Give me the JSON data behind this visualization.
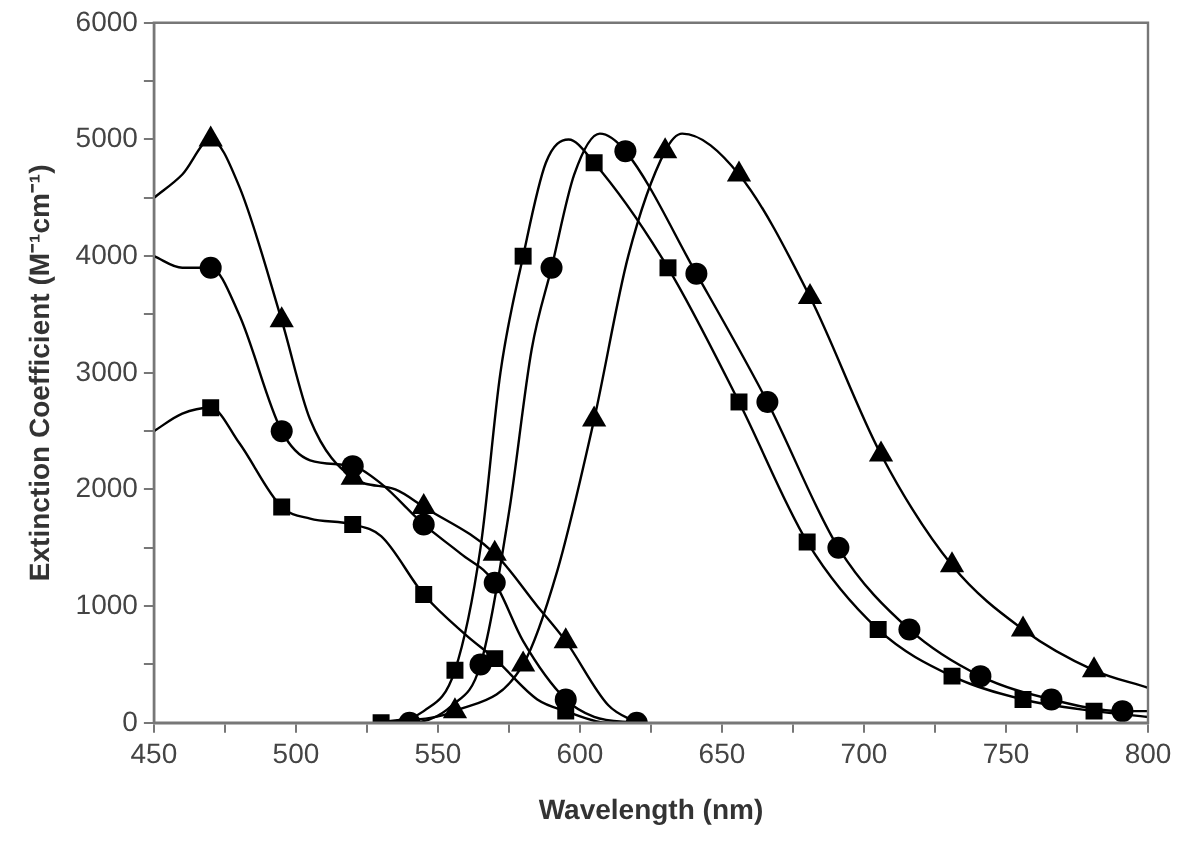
{
  "chart_data": {
    "type": "line",
    "xlabel": "Wavelength (nm)",
    "ylabel": "Extinction Coefficient (M⁻¹cm⁻¹)",
    "xlim": [
      450,
      800
    ],
    "ylim": [
      0,
      6000
    ],
    "xticks": [
      450,
      {
        "value": 475,
        "label": null
      },
      500,
      {
        "value": 525,
        "label": null
      },
      550,
      {
        "value": 575,
        "label": null
      },
      600,
      {
        "value": 625,
        "label": null
      },
      650,
      {
        "value": 675,
        "label": null
      },
      700,
      {
        "value": 725,
        "label": null
      },
      750,
      {
        "value": 775,
        "label": null
      },
      800
    ],
    "yticks": [
      0,
      {
        "value": 500,
        "label": null
      },
      1000,
      {
        "value": 1500,
        "label": null
      },
      2000,
      {
        "value": 2500,
        "label": null
      },
      3000,
      {
        "value": 3500,
        "label": null
      },
      4000,
      {
        "value": 4500,
        "label": null
      },
      5000,
      {
        "value": 5500,
        "label": null
      },
      6000
    ],
    "grid": false,
    "legend": false,
    "series": [
      {
        "marker": "none",
        "color": "#000000",
        "x": [
          450,
          460,
          470,
          480,
          495,
          505,
          520,
          535,
          545,
          570,
          585,
          595,
          610,
          620
        ],
        "values": [
          4500,
          4700,
          5000,
          4600,
          3450,
          2600,
          2100,
          2000,
          1850,
          1450,
          1000,
          700,
          150,
          0
        ]
      },
      {
        "type": "scatter",
        "marker": "triangle",
        "color": "#000000",
        "x": [
          470,
          495,
          520,
          545,
          570,
          595
        ],
        "values": [
          5000,
          3450,
          2100,
          1850,
          1450,
          700
        ]
      },
      {
        "marker": "none",
        "color": "#000000",
        "x": [
          450,
          460,
          470,
          480,
          495,
          505,
          520,
          530,
          545,
          558,
          570,
          580,
          595,
          605,
          620
        ],
        "values": [
          4000,
          3900,
          3900,
          3500,
          2500,
          2250,
          2200,
          2050,
          1700,
          1450,
          1200,
          700,
          200,
          50,
          0
        ]
      },
      {
        "type": "scatter",
        "marker": "circle",
        "color": "#000000",
        "x": [
          470,
          495,
          520,
          545,
          570,
          595,
          620
        ],
        "values": [
          3900,
          2500,
          2200,
          1700,
          1200,
          200,
          0
        ]
      },
      {
        "marker": "none",
        "color": "#000000",
        "x": [
          450,
          460,
          470,
          480,
          495,
          505,
          520,
          530,
          545,
          560,
          570,
          585,
          595,
          610,
          620
        ],
        "values": [
          2500,
          2650,
          2700,
          2400,
          1850,
          1750,
          1700,
          1600,
          1100,
          750,
          550,
          200,
          100,
          0,
          0
        ]
      },
      {
        "type": "scatter",
        "marker": "square",
        "color": "#000000",
        "x": [
          470,
          495,
          520,
          545,
          570,
          595
        ],
        "values": [
          2700,
          1850,
          1700,
          1100,
          550,
          100
        ]
      },
      {
        "marker": "none",
        "color": "#000000",
        "x": [
          530,
          545,
          556,
          565,
          572,
          580,
          588,
          596,
          605,
          631,
          656,
          680,
          705,
          731,
          756,
          781,
          800
        ],
        "values": [
          0,
          100,
          450,
          1500,
          3000,
          4000,
          4800,
          5000,
          4800,
          3900,
          2750,
          1550,
          800,
          400,
          200,
          100,
          50
        ]
      },
      {
        "type": "scatter",
        "marker": "square",
        "color": "#000000",
        "x": [
          530,
          556,
          580,
          605,
          631,
          656,
          680,
          705,
          731,
          756,
          781
        ],
        "values": [
          0,
          450,
          4000,
          4800,
          3900,
          2750,
          1550,
          800,
          400,
          200,
          100
        ]
      },
      {
        "marker": "none",
        "color": "#000000",
        "x": [
          530,
          540,
          555,
          565,
          575,
          583,
          590,
          598,
          607,
          616,
          641,
          666,
          691,
          716,
          741,
          766,
          791,
          800
        ],
        "values": [
          0,
          0,
          150,
          500,
          1800,
          3200,
          3900,
          4700,
          5050,
          4900,
          3850,
          2750,
          1500,
          800,
          400,
          200,
          100,
          100
        ]
      },
      {
        "type": "scatter",
        "marker": "circle",
        "color": "#000000",
        "x": [
          540,
          565,
          590,
          616,
          641,
          666,
          691,
          716,
          741,
          766,
          791
        ],
        "values": [
          0,
          500,
          3900,
          4900,
          3850,
          2750,
          1500,
          800,
          400,
          200,
          100
        ]
      },
      {
        "marker": "none",
        "color": "#000000",
        "x": [
          530,
          556,
          580,
          592,
          605,
          617,
          630,
          636,
          656,
          681,
          706,
          731,
          756,
          781,
          800
        ],
        "values": [
          0,
          100,
          500,
          1300,
          2600,
          4000,
          4900,
          5050,
          4700,
          3650,
          2300,
          1350,
          800,
          450,
          300
        ]
      },
      {
        "type": "scatter",
        "marker": "triangle",
        "color": "#000000",
        "x": [
          556,
          580,
          605,
          630,
          656,
          681,
          706,
          731,
          756,
          781
        ],
        "values": [
          100,
          500,
          2600,
          4900,
          4700,
          3650,
          2300,
          1350,
          800,
          450
        ]
      }
    ]
  }
}
